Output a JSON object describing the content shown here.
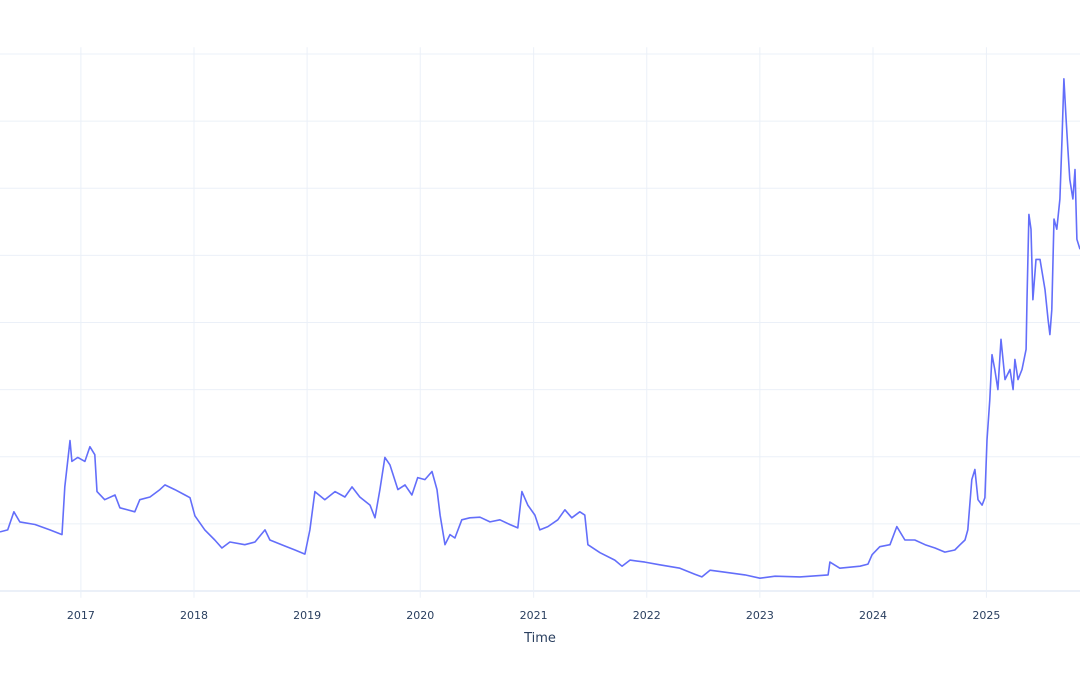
{
  "chart_data": {
    "type": "line",
    "title": "",
    "xlabel": "Time",
    "ylabel": "",
    "x_type": "date",
    "xlim": [
      "2016-04-15",
      "2025-10-30"
    ],
    "ylim": [
      -0.1,
      8.1
    ],
    "y_tick_labels_visible": false,
    "grid": true,
    "line_color": "#636efa",
    "grid_color": "#ebf0f8",
    "tick_color": "#2a3f5f",
    "x_ticks": [
      "2017",
      "2018",
      "2019",
      "2020",
      "2021",
      "2022",
      "2023",
      "2024",
      "2025"
    ],
    "y_gridlines": [
      0,
      1,
      2,
      3,
      4,
      5,
      6,
      7,
      8
    ],
    "series": [
      {
        "x": [
          "2016-04-15",
          "2016-05-10",
          "2016-05-30",
          "2016-06-18",
          "2016-08-06",
          "2016-09-23",
          "2016-11-01",
          "2016-11-10",
          "2016-11-27",
          "2016-12-03",
          "2016-12-22",
          "2017-01-14",
          "2017-01-30",
          "2017-02-15",
          "2017-02-22",
          "2017-03-19",
          "2017-04-21",
          "2017-05-07",
          "2017-06-24",
          "2017-07-10",
          "2017-08-12",
          "2017-09-13",
          "2017-09-29",
          "2017-10-31",
          "2017-12-03",
          "2017-12-19",
          "2018-01-04",
          "2018-02-05",
          "2018-03-09",
          "2018-04-01",
          "2018-04-27",
          "2018-06-14",
          "2018-07-17",
          "2018-08-18",
          "2018-09-03",
          "2018-10-21",
          "2018-11-23",
          "2018-12-25",
          "2019-01-10",
          "2019-01-26",
          "2019-02-27",
          "2019-04-01",
          "2019-05-03",
          "2019-05-26",
          "2019-06-20",
          "2019-07-23",
          "2019-08-08",
          "2019-08-24",
          "2019-09-09",
          "2019-09-25",
          "2019-10-21",
          "2019-11-13",
          "2019-12-05",
          "2019-12-24",
          "2020-01-16",
          "2020-02-08",
          "2020-02-24",
          "2020-03-05",
          "2020-03-21",
          "2020-04-06",
          "2020-04-22",
          "2020-05-14",
          "2020-06-09",
          "2020-07-12",
          "2020-08-13",
          "2020-09-14",
          "2020-10-16",
          "2020-11-11",
          "2020-11-24",
          "2020-12-13",
          "2021-01-05",
          "2021-01-21",
          "2021-02-16",
          "2021-03-20",
          "2021-04-12",
          "2021-05-04",
          "2021-05-30",
          "2021-06-15",
          "2021-06-25",
          "2021-08-03",
          "2021-09-20",
          "2021-10-13",
          "2021-11-08",
          "2021-12-26",
          "2022-02-12",
          "2022-04-18",
          "2022-06-05",
          "2022-06-28",
          "2022-07-24",
          "2022-09-10",
          "2022-11-14",
          "2023-01-01",
          "2023-02-19",
          "2023-05-10",
          "2023-08-09",
          "2023-08-15",
          "2023-09-16",
          "2023-11-20",
          "2023-12-16",
          "2023-12-29",
          "2024-01-23",
          "2024-02-25",
          "2024-03-18",
          "2024-04-13",
          "2024-05-15",
          "2024-06-17",
          "2024-07-19",
          "2024-08-20",
          "2024-09-21",
          "2024-10-08",
          "2024-10-24",
          "2024-11-02",
          "2024-11-15",
          "2024-11-25",
          "2024-12-05",
          "2024-12-18",
          "2024-12-27",
          "2025-01-03",
          "2025-01-12",
          "2025-01-19",
          "2025-01-28",
          "2025-02-07",
          "2025-02-17",
          "2025-03-02",
          "2025-03-18",
          "2025-03-28",
          "2025-04-03",
          "2025-04-13",
          "2025-04-26",
          "2025-05-09",
          "2025-05-12",
          "2025-05-18",
          "2025-05-25",
          "2025-05-31",
          "2025-06-10",
          "2025-06-23",
          "2025-07-09",
          "2025-07-19",
          "2025-07-25",
          "2025-07-31",
          "2025-08-07",
          "2025-08-16",
          "2025-08-26",
          "2025-09-02",
          "2025-09-08",
          "2025-09-15",
          "2025-09-21",
          "2025-09-27",
          "2025-10-07",
          "2025-10-14",
          "2025-10-20",
          "2025-10-30"
        ],
        "y": [
          0.88,
          0.91,
          1.18,
          1.03,
          0.99,
          0.91,
          0.84,
          1.55,
          2.24,
          1.93,
          1.99,
          1.93,
          2.15,
          2.03,
          1.48,
          1.36,
          1.43,
          1.24,
          1.18,
          1.36,
          1.4,
          1.51,
          1.58,
          1.51,
          1.43,
          1.39,
          1.12,
          0.91,
          0.76,
          0.64,
          0.73,
          0.69,
          0.73,
          0.91,
          0.76,
          0.67,
          0.61,
          0.55,
          0.91,
          1.48,
          1.36,
          1.48,
          1.4,
          1.55,
          1.4,
          1.28,
          1.09,
          1.51,
          1.99,
          1.88,
          1.51,
          1.58,
          1.43,
          1.69,
          1.66,
          1.78,
          1.51,
          1.13,
          0.69,
          0.84,
          0.79,
          1.06,
          1.09,
          1.1,
          1.03,
          1.06,
          0.99,
          0.94,
          1.48,
          1.28,
          1.13,
          0.91,
          0.96,
          1.06,
          1.21,
          1.09,
          1.18,
          1.13,
          0.69,
          0.57,
          0.46,
          0.37,
          0.46,
          0.43,
          0.39,
          0.34,
          0.25,
          0.21,
          0.31,
          0.28,
          0.24,
          0.19,
          0.22,
          0.21,
          0.24,
          0.43,
          0.34,
          0.37,
          0.4,
          0.54,
          0.66,
          0.69,
          0.96,
          0.76,
          0.76,
          0.69,
          0.64,
          0.58,
          0.61,
          0.69,
          0.76,
          0.91,
          1.66,
          1.81,
          1.36,
          1.28,
          1.39,
          2.25,
          2.85,
          3.52,
          3.3,
          3.0,
          3.75,
          3.15,
          3.3,
          3.0,
          3.45,
          3.15,
          3.3,
          3.6,
          4.34,
          5.61,
          5.39,
          4.34,
          4.94,
          4.94,
          4.49,
          4.04,
          3.82,
          4.19,
          5.54,
          5.39,
          5.84,
          6.73,
          7.63,
          7.03,
          6.58,
          6.13,
          5.84,
          6.28,
          5.24,
          5.09
        ]
      }
    ]
  }
}
